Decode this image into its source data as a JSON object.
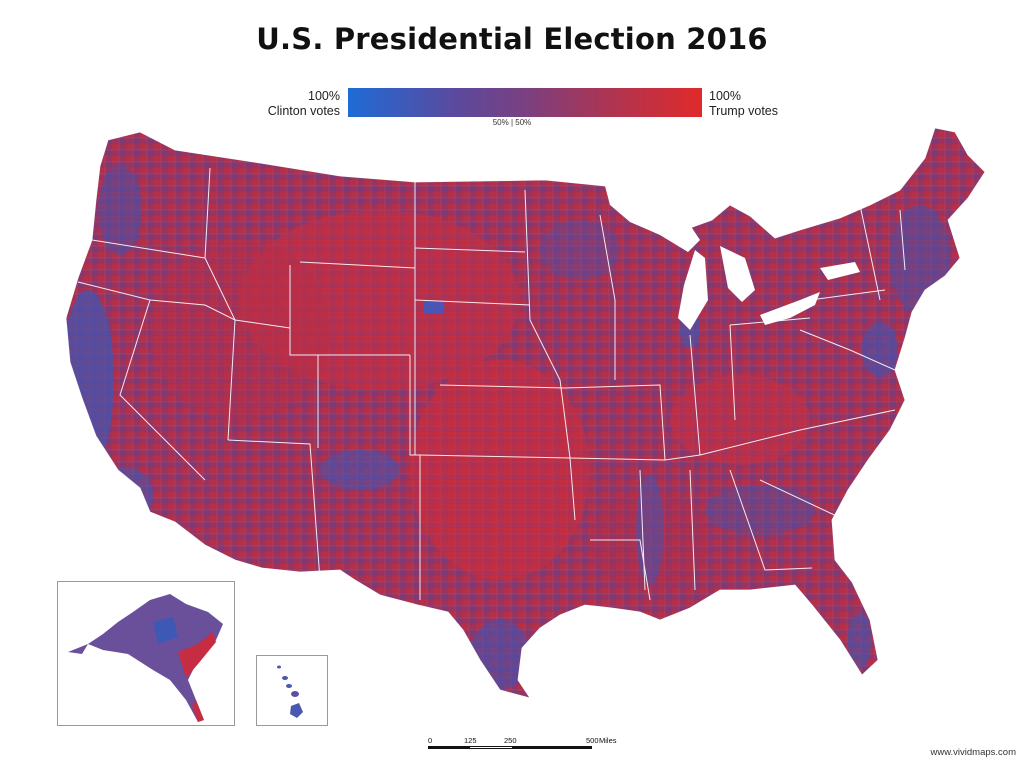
{
  "map": {
    "title": "U.S. Presidential Election 2016",
    "legend": {
      "left_pct": "100%",
      "left_label": "Clinton votes",
      "right_pct": "100%",
      "right_label": "Trump votes",
      "mid_label": "50% | 50%",
      "gradient_colors": [
        "#1f6bd6",
        "#5a4a9e",
        "#8a3a74",
        "#c93040",
        "#e02a2a"
      ]
    },
    "colors": {
      "clinton": "#2a5fcc",
      "trump": "#d42a3a",
      "mixed": "#8a3b6e",
      "state_border": "#ffffff"
    },
    "insets": {
      "alaska": "Alaska",
      "hawaii": "Hawaii"
    },
    "scale_bar": {
      "ticks": [
        "0",
        "125",
        "250",
        "500"
      ],
      "unit": "Miles"
    },
    "credit": "www.vividmaps.com"
  }
}
